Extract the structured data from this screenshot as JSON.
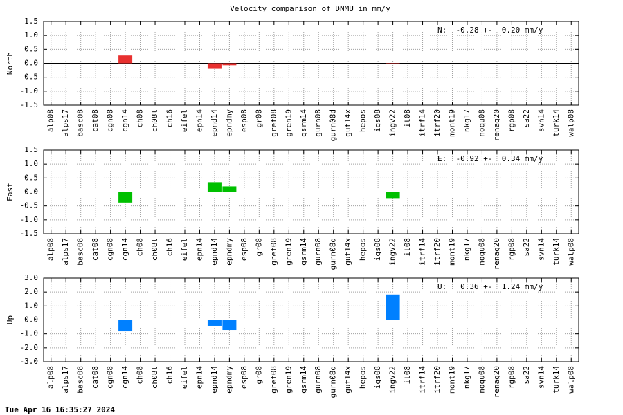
{
  "title": "Velocity comparison of DNMU in mm/y",
  "footer": "Tue Apr 16 16:35:27 2024",
  "chart_data": [
    {
      "type": "bar",
      "ylabel": "North",
      "annotation": "N:  -0.28 +-  0.20 mm/y",
      "color": "#e8302f",
      "grid": true,
      "categories": [
        "alp08",
        "alps17",
        "basc08",
        "cat08",
        "cgn08",
        "cgn14",
        "ch08",
        "ch08l",
        "ch16",
        "eifel",
        "epn14",
        "epnd14",
        "epndmy",
        "esp08",
        "gr08",
        "gref08",
        "gren19",
        "gsrm14",
        "gurn08",
        "gurn08d",
        "gut14x",
        "hepos",
        "igs08",
        "ingv22",
        "it08",
        "itrf14",
        "itrf20",
        "mont19",
        "nkg17",
        "noqu08",
        "renag20",
        "rgp08",
        "sa22",
        "svn14",
        "turk14",
        "walp08"
      ],
      "values": [
        null,
        null,
        null,
        null,
        null,
        0.28,
        null,
        null,
        null,
        null,
        null,
        -0.2,
        -0.07,
        null,
        null,
        null,
        null,
        null,
        null,
        null,
        null,
        null,
        null,
        -0.02,
        null,
        null,
        null,
        null,
        null,
        null,
        null,
        null,
        null,
        null,
        null,
        null
      ],
      "ylim": [
        -1.5,
        1.5
      ],
      "yticks": [
        1.5,
        {
          "value": 1,
          "label": "1.0"
        },
        0.5,
        {
          "value": 0,
          "label": "0.0"
        },
        -0.5,
        {
          "value": -1,
          "label": "-1.0"
        },
        -1.5
      ]
    },
    {
      "type": "bar",
      "ylabel": "East",
      "annotation": "E:  -0.92 +-  0.34 mm/y",
      "color": "#00c000",
      "grid": true,
      "categories": [
        "alp08",
        "alps17",
        "basc08",
        "cat08",
        "cgn08",
        "cgn14",
        "ch08",
        "ch08l",
        "ch16",
        "eifel",
        "epn14",
        "epnd14",
        "epndmy",
        "esp08",
        "gr08",
        "gref08",
        "gren19",
        "gsrm14",
        "gurn08",
        "gurn08d",
        "gut14x",
        "hepos",
        "igs08",
        "ingv22",
        "it08",
        "itrf14",
        "itrf20",
        "mont19",
        "nkg17",
        "noqu08",
        "renag20",
        "rgp08",
        "sa22",
        "svn14",
        "turk14",
        "walp08"
      ],
      "values": [
        null,
        null,
        null,
        null,
        null,
        -0.38,
        null,
        null,
        null,
        null,
        null,
        0.35,
        0.2,
        null,
        null,
        null,
        null,
        null,
        null,
        null,
        null,
        null,
        null,
        -0.22,
        null,
        null,
        null,
        null,
        null,
        null,
        null,
        null,
        null,
        null,
        null,
        null
      ],
      "ylim": [
        -1.5,
        1.5
      ],
      "yticks": [
        1.5,
        {
          "value": 1,
          "label": "1.0"
        },
        0.5,
        {
          "value": 0,
          "label": "0.0"
        },
        -0.5,
        {
          "value": -1,
          "label": "-1.0"
        },
        -1.5
      ]
    },
    {
      "type": "bar",
      "ylabel": "Up",
      "annotation": "U:   0.36 +-  1.24 mm/y",
      "color": "#0080ff",
      "grid": true,
      "categories": [
        "alp08",
        "alps17",
        "basc08",
        "cat08",
        "cgn08",
        "cgn14",
        "ch08",
        "ch08l",
        "ch16",
        "eifel",
        "epn14",
        "epnd14",
        "epndmy",
        "esp08",
        "gr08",
        "gref08",
        "gren19",
        "gsrm14",
        "gurn08",
        "gurn08d",
        "gut14x",
        "hepos",
        "igs08",
        "ingv22",
        "it08",
        "itrf14",
        "itrf20",
        "mont19",
        "nkg17",
        "noqu08",
        "renag20",
        "rgp08",
        "sa22",
        "svn14",
        "turk14",
        "walp08"
      ],
      "values": [
        null,
        null,
        null,
        null,
        null,
        -0.82,
        null,
        null,
        null,
        null,
        null,
        -0.42,
        -0.72,
        null,
        null,
        null,
        null,
        null,
        null,
        null,
        null,
        null,
        null,
        1.82,
        null,
        null,
        null,
        null,
        null,
        null,
        null,
        null,
        null,
        null,
        null,
        null
      ],
      "ylim": [
        -3,
        3
      ],
      "yticks": [
        {
          "value": 3,
          "label": "3.0"
        },
        {
          "value": 2,
          "label": "2.0"
        },
        {
          "value": 1,
          "label": "1.0"
        },
        {
          "value": 0,
          "label": "0.0"
        },
        {
          "value": -1,
          "label": "-1.0"
        },
        {
          "value": -2,
          "label": "-2.0"
        },
        {
          "value": -3,
          "label": "-3.0"
        }
      ]
    }
  ]
}
